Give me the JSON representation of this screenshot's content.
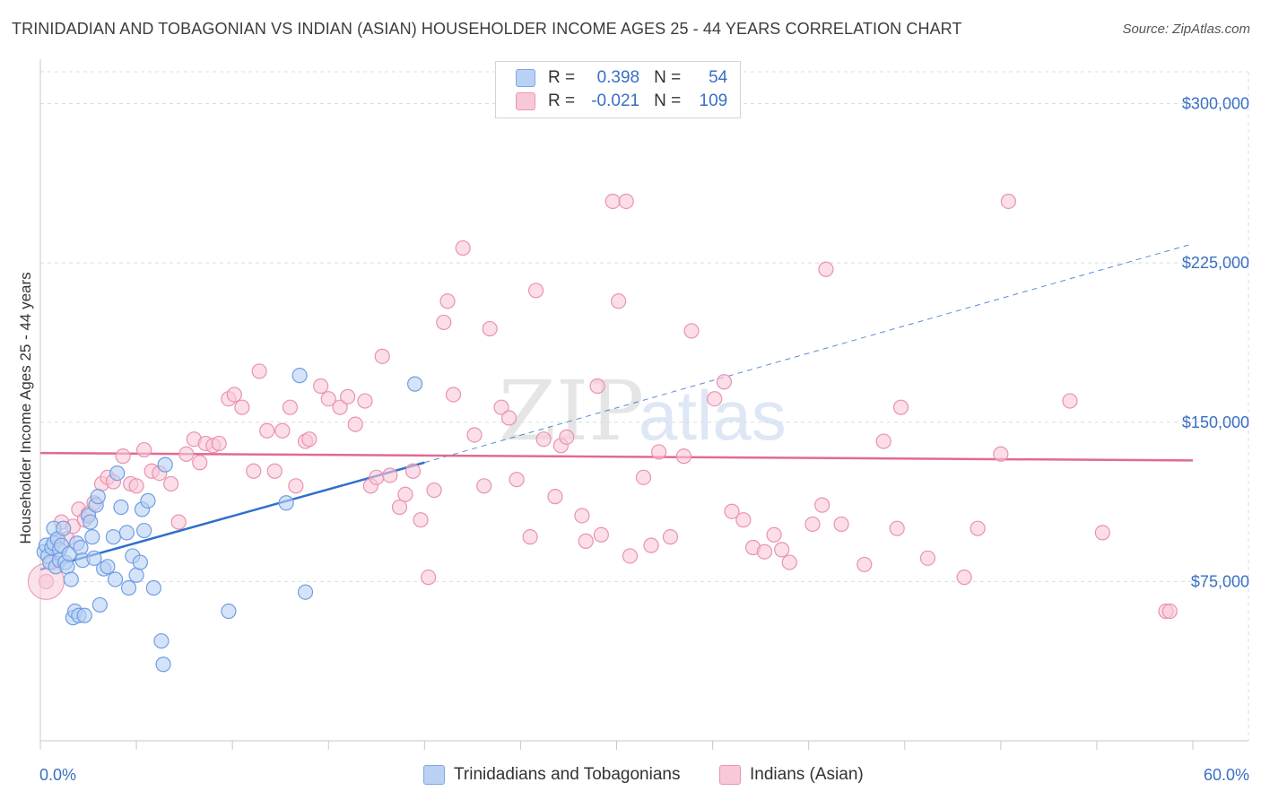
{
  "title": "TRINIDADIAN AND TOBAGONIAN VS INDIAN (ASIAN) HOUSEHOLDER INCOME AGES 25 - 44 YEARS CORRELATION CHART",
  "source": "Source: ZipAtlas.com",
  "watermark": {
    "zip": "ZIP",
    "atlas": "atlas"
  },
  "legend": {
    "r_label": "R =",
    "n_label": "N =",
    "rows": [
      {
        "r": "0.398",
        "n": "54"
      },
      {
        "r": "-0.021",
        "n": "109"
      }
    ]
  },
  "colors": {
    "blue_fill": "#b9d1f3",
    "blue_stroke": "#6f9fe2",
    "blue_line": "#2f6fcc",
    "pink_fill": "#f8c8d8",
    "pink_stroke": "#e992b0",
    "pink_line": "#e26a92",
    "tick_label": "#3a6fc4",
    "grid": "#dcdcdc"
  },
  "chart_data": {
    "type": "scatter",
    "xlabel": "",
    "ylabel": "Householder Income Ages 25 - 44 years",
    "xlim": [
      0,
      60
    ],
    "ylim": [
      0,
      315000
    ],
    "x_tick_labels": [
      "0.0%",
      "60.0%"
    ],
    "y_ticks": [
      75000,
      150000,
      225000,
      300000
    ],
    "y_tick_labels": [
      "$75,000",
      "$150,000",
      "$225,000",
      "$300,000"
    ],
    "grid": true,
    "legend_position": "top-center",
    "series": [
      {
        "name": "Trinidadians and Tobagonians",
        "color": "#b9d1f3",
        "trend": {
          "x": [
            0,
            20
          ],
          "y": [
            80600,
            131000
          ],
          "dashed_extension_to": [
            60,
            234000
          ]
        },
        "points": [
          [
            0.2,
            89000
          ],
          [
            0.3,
            92000
          ],
          [
            0.4,
            87000
          ],
          [
            0.5,
            84000
          ],
          [
            0.6,
            91000
          ],
          [
            0.7,
            93000
          ],
          [
            0.7,
            100000
          ],
          [
            0.8,
            82000
          ],
          [
            0.9,
            95000
          ],
          [
            1.0,
            90000
          ],
          [
            1.0,
            85000
          ],
          [
            1.1,
            92000
          ],
          [
            1.2,
            100000
          ],
          [
            1.3,
            84000
          ],
          [
            1.4,
            82000
          ],
          [
            1.5,
            88000
          ],
          [
            1.6,
            76000
          ],
          [
            1.7,
            58000
          ],
          [
            1.8,
            61000
          ],
          [
            1.9,
            93000
          ],
          [
            2.0,
            59000
          ],
          [
            2.1,
            91000
          ],
          [
            2.2,
            85000
          ],
          [
            2.3,
            59000
          ],
          [
            2.5,
            106000
          ],
          [
            2.6,
            103000
          ],
          [
            2.7,
            96000
          ],
          [
            2.8,
            86000
          ],
          [
            2.9,
            111000
          ],
          [
            3.0,
            115000
          ],
          [
            3.1,
            64000
          ],
          [
            3.3,
            81000
          ],
          [
            3.5,
            82000
          ],
          [
            3.8,
            96000
          ],
          [
            3.9,
            76000
          ],
          [
            4.0,
            126000
          ],
          [
            4.2,
            110000
          ],
          [
            4.5,
            98000
          ],
          [
            4.6,
            72000
          ],
          [
            4.8,
            87000
          ],
          [
            5.0,
            78000
          ],
          [
            5.2,
            84000
          ],
          [
            5.3,
            109000
          ],
          [
            5.4,
            99000
          ],
          [
            5.6,
            113000
          ],
          [
            5.9,
            72000
          ],
          [
            6.3,
            47000
          ],
          [
            6.4,
            36000
          ],
          [
            6.5,
            130000
          ],
          [
            9.8,
            61000
          ],
          [
            12.8,
            112000
          ],
          [
            13.5,
            172000
          ],
          [
            13.8,
            70000
          ],
          [
            19.5,
            168000
          ]
        ]
      },
      {
        "name": "Indians (Asian)",
        "color": "#f8c8d8",
        "trend": {
          "x": [
            0,
            60
          ],
          "y": [
            135500,
            132000
          ]
        },
        "points": [
          [
            0.3,
            75000
          ],
          [
            0.6,
            84000
          ],
          [
            0.9,
            95000
          ],
          [
            1.1,
            103000
          ],
          [
            1.4,
            95000
          ],
          [
            1.7,
            101000
          ],
          [
            2.0,
            109000
          ],
          [
            2.3,
            104000
          ],
          [
            2.5,
            107000
          ],
          [
            2.8,
            112000
          ],
          [
            3.2,
            121000
          ],
          [
            3.5,
            124000
          ],
          [
            3.8,
            122000
          ],
          [
            4.3,
            134000
          ],
          [
            4.7,
            121000
          ],
          [
            5.0,
            120000
          ],
          [
            5.4,
            137000
          ],
          [
            5.8,
            127000
          ],
          [
            6.2,
            126000
          ],
          [
            6.8,
            121000
          ],
          [
            7.2,
            103000
          ],
          [
            7.6,
            135000
          ],
          [
            8.0,
            142000
          ],
          [
            8.3,
            131000
          ],
          [
            8.6,
            140000
          ],
          [
            9.0,
            139000
          ],
          [
            9.3,
            140000
          ],
          [
            9.8,
            161000
          ],
          [
            10.1,
            163000
          ],
          [
            10.5,
            157000
          ],
          [
            11.1,
            127000
          ],
          [
            11.4,
            174000
          ],
          [
            11.8,
            146000
          ],
          [
            12.2,
            127000
          ],
          [
            12.6,
            146000
          ],
          [
            13.0,
            157000
          ],
          [
            13.3,
            120000
          ],
          [
            13.8,
            141000
          ],
          [
            14.0,
            142000
          ],
          [
            14.6,
            167000
          ],
          [
            15.0,
            161000
          ],
          [
            15.6,
            157000
          ],
          [
            16.0,
            162000
          ],
          [
            16.4,
            149000
          ],
          [
            16.9,
            160000
          ],
          [
            17.2,
            120000
          ],
          [
            17.5,
            124000
          ],
          [
            17.8,
            181000
          ],
          [
            18.2,
            125000
          ],
          [
            18.7,
            110000
          ],
          [
            19.0,
            116000
          ],
          [
            19.4,
            127000
          ],
          [
            19.8,
            104000
          ],
          [
            20.2,
            77000
          ],
          [
            20.5,
            118000
          ],
          [
            21.0,
            197000
          ],
          [
            21.2,
            207000
          ],
          [
            21.5,
            163000
          ],
          [
            22.0,
            232000
          ],
          [
            22.6,
            144000
          ],
          [
            23.1,
            120000
          ],
          [
            23.4,
            194000
          ],
          [
            24.0,
            157000
          ],
          [
            24.4,
            152000
          ],
          [
            24.8,
            123000
          ],
          [
            25.5,
            96000
          ],
          [
            25.8,
            212000
          ],
          [
            26.2,
            142000
          ],
          [
            26.8,
            115000
          ],
          [
            27.1,
            139000
          ],
          [
            27.4,
            143000
          ],
          [
            28.2,
            106000
          ],
          [
            28.4,
            94000
          ],
          [
            29.0,
            167000
          ],
          [
            29.2,
            97000
          ],
          [
            29.8,
            254000
          ],
          [
            30.1,
            207000
          ],
          [
            30.5,
            254000
          ],
          [
            30.7,
            87000
          ],
          [
            31.4,
            124000
          ],
          [
            31.8,
            92000
          ],
          [
            32.2,
            136000
          ],
          [
            32.8,
            96000
          ],
          [
            33.5,
            134000
          ],
          [
            33.9,
            193000
          ],
          [
            35.1,
            161000
          ],
          [
            35.6,
            169000
          ],
          [
            36.0,
            108000
          ],
          [
            36.6,
            104000
          ],
          [
            37.1,
            91000
          ],
          [
            37.7,
            89000
          ],
          [
            38.2,
            97000
          ],
          [
            38.6,
            90000
          ],
          [
            39.0,
            84000
          ],
          [
            40.2,
            102000
          ],
          [
            40.7,
            111000
          ],
          [
            40.9,
            222000
          ],
          [
            41.7,
            102000
          ],
          [
            42.9,
            83000
          ],
          [
            43.9,
            141000
          ],
          [
            44.6,
            100000
          ],
          [
            44.8,
            157000
          ],
          [
            46.2,
            86000
          ],
          [
            48.1,
            77000
          ],
          [
            48.8,
            100000
          ],
          [
            50.0,
            135000
          ],
          [
            50.4,
            254000
          ],
          [
            53.6,
            160000
          ],
          [
            55.3,
            98000
          ],
          [
            58.6,
            61000
          ],
          [
            58.8,
            61000
          ]
        ]
      }
    ]
  },
  "bottom_legend": [
    "Trinidadians and Tobagonians",
    "Indians (Asian)"
  ]
}
